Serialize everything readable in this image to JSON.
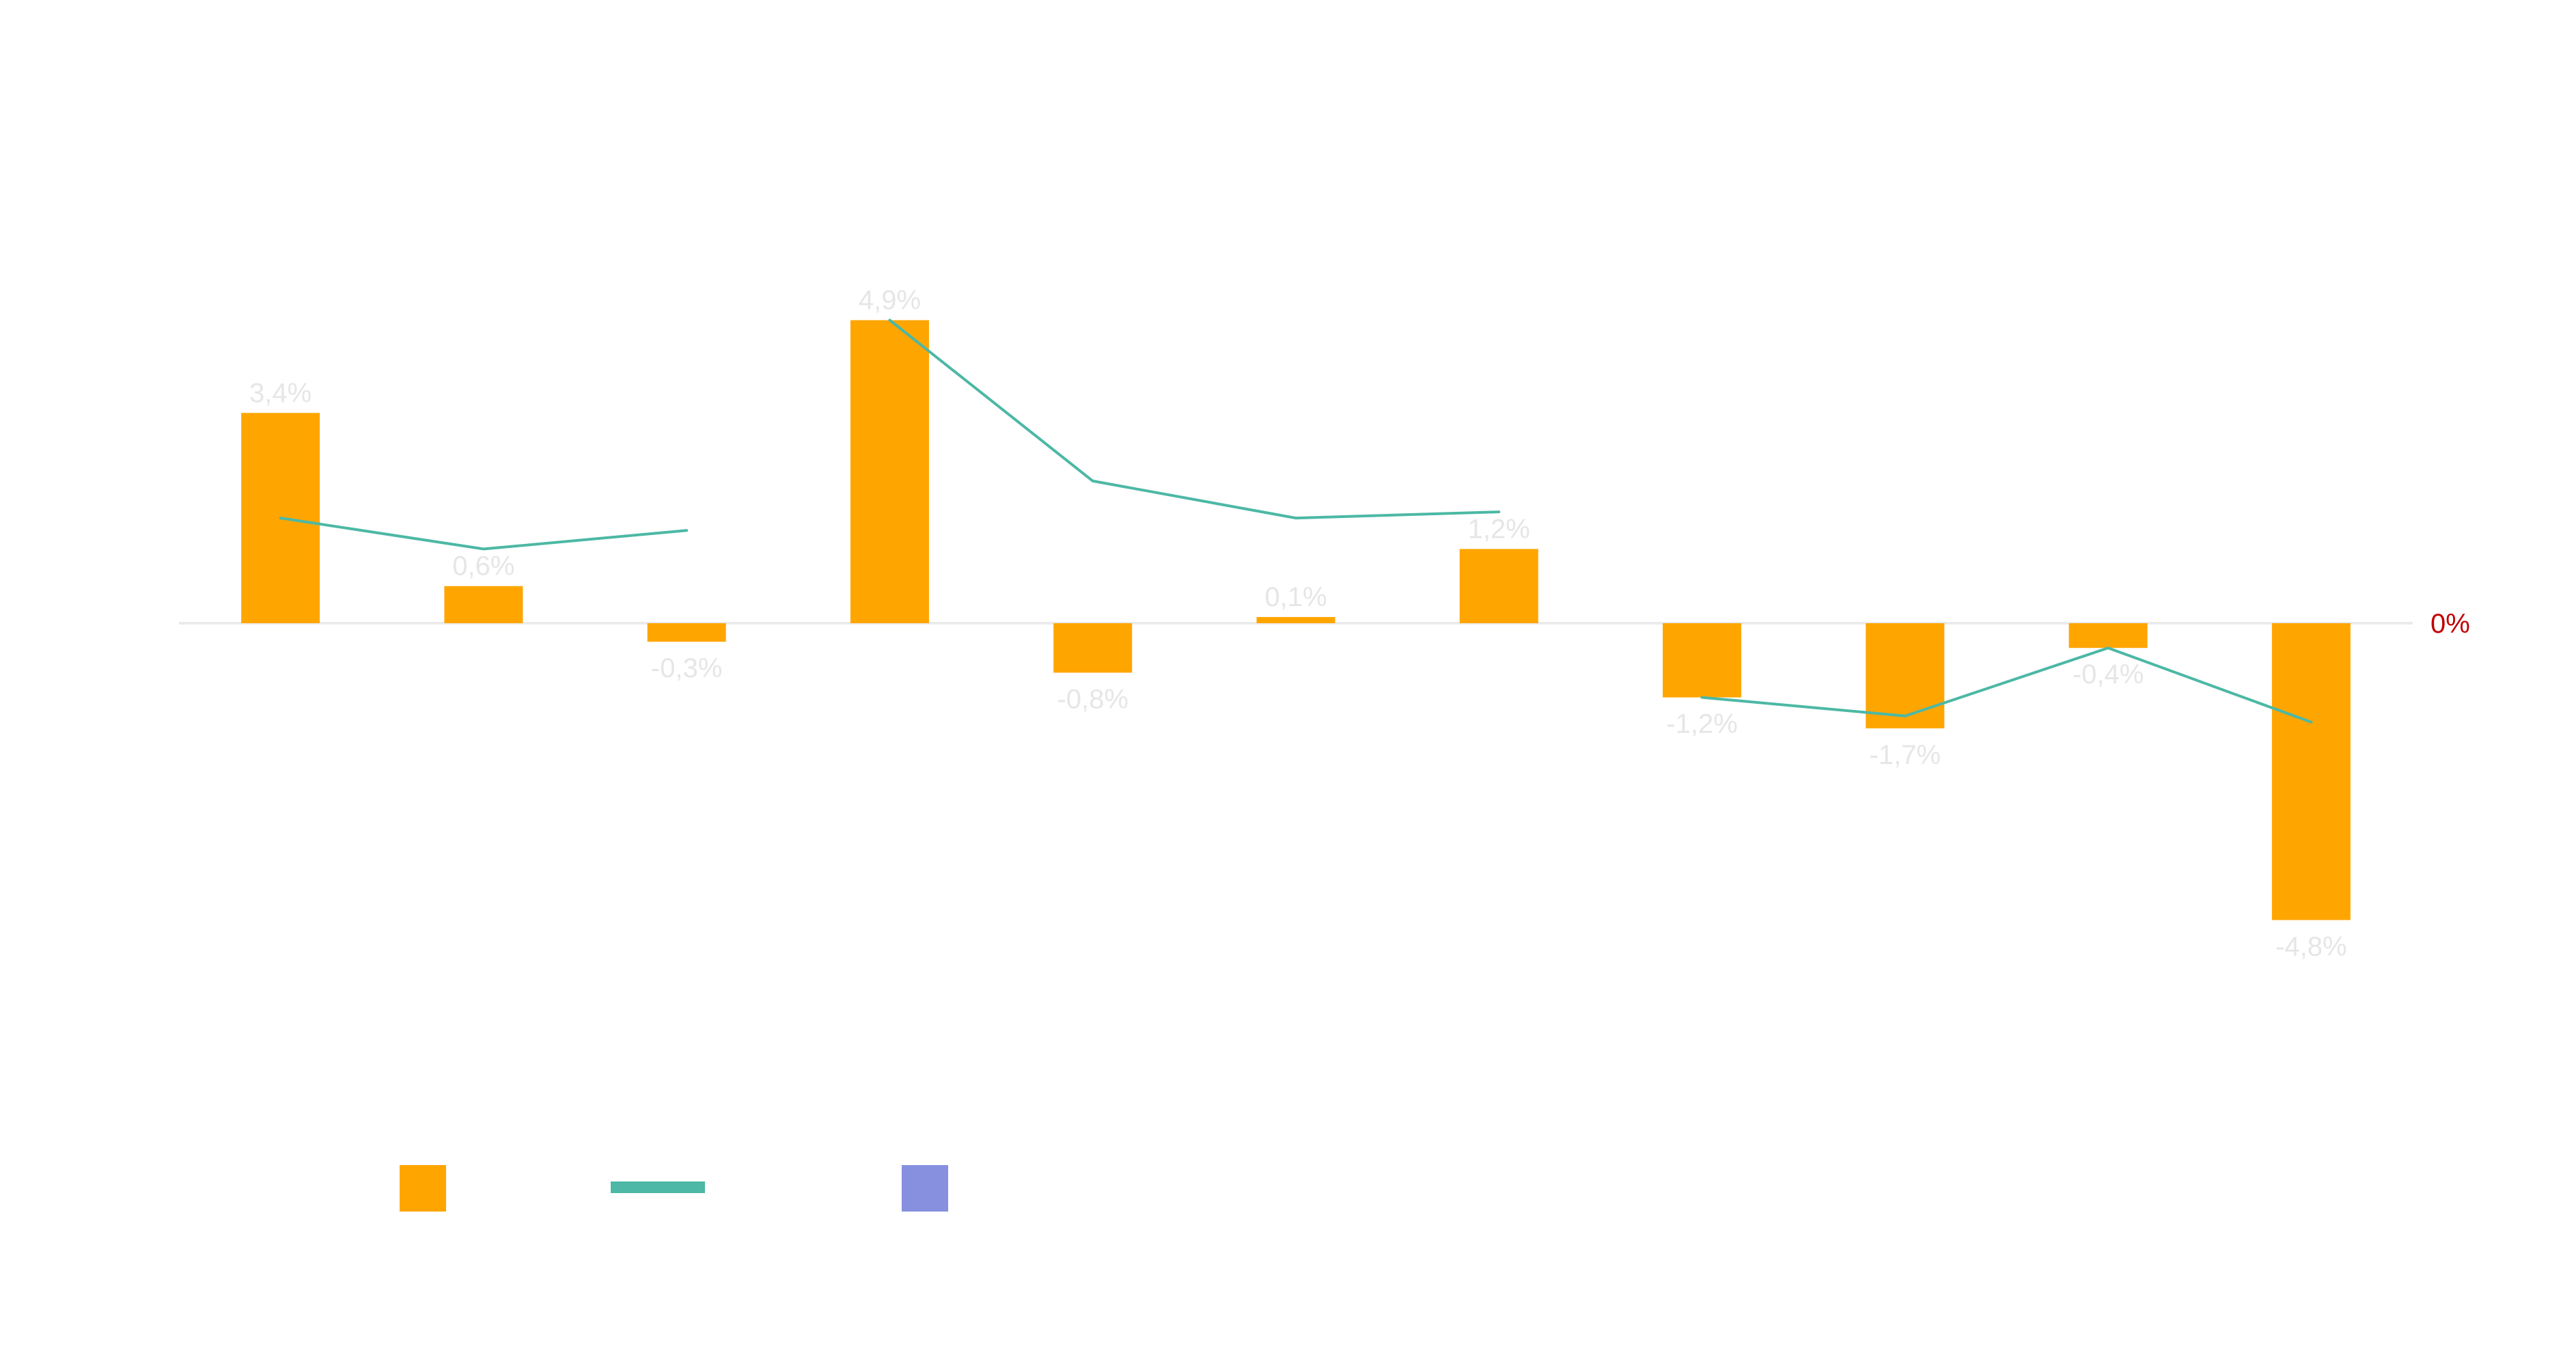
{
  "chart_data": {
    "type": "bar",
    "categories": [
      "",
      "",
      "",
      "",
      "",
      "",
      "",
      "",
      "",
      "",
      ""
    ],
    "series": [
      {
        "type": "bar",
        "values": [
          3.4,
          0.6,
          -0.3,
          4.9,
          -0.8,
          0.1,
          1.2,
          -1.2,
          -1.7,
          -0.4,
          -4.8
        ],
        "labels": [
          "3,4%",
          "0,6%",
          "-0,3%",
          "4,9%",
          "-0,8%",
          "0,1%",
          "1,2%",
          "-1,2%",
          "-1,7%",
          "-0,4%",
          "-4,8%"
        ],
        "color": "#FFA500"
      },
      {
        "type": "line",
        "values": [
          1.7,
          1.2,
          1.5,
          4.9,
          2.3,
          1.7,
          1.8,
          -1.2,
          -1.5,
          -0.4,
          -1.6
        ],
        "color": "#4CB8A5",
        "segments": [
          [
            0,
            2
          ],
          [
            3,
            6
          ],
          [
            7,
            10
          ]
        ]
      }
    ],
    "zero_line_label": "0%",
    "ylim": [
      -7.5,
      8.0
    ],
    "grid": false,
    "legend": {
      "position": "bottom-left",
      "swatch_colors": [
        "#FFA500",
        "#4CB8A5",
        "#8790DF"
      ]
    },
    "colors": {
      "bar": "#FFA500",
      "line": "#4CB8A5",
      "third_series": "#8790DF",
      "zero_label": "#C00000",
      "axis": "#EBEBEB",
      "data_label": "#E6E6E6"
    }
  }
}
